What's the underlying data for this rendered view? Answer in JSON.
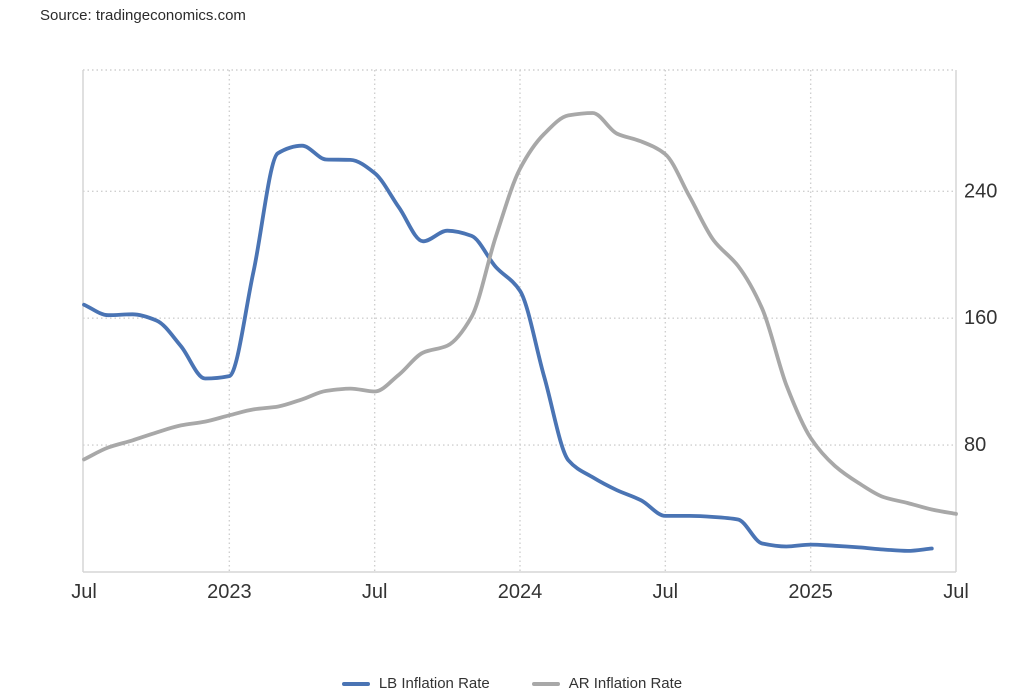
{
  "header": {
    "source_text": "Source: tradingeconomics.com"
  },
  "legend": {
    "position": "bottom",
    "items": [
      {
        "label": "LB Inflation Rate",
        "color": "#4a74b4"
      },
      {
        "label": "AR Inflation Rate",
        "color": "#a8a8a8"
      }
    ]
  },
  "colors": {
    "background": "#ffffff",
    "grid_dotted": "#cfcfcf",
    "frame": "#d5d5d5",
    "tick_text": "#333333",
    "lb_line": "#4a74b4",
    "ar_line": "#a8a8a8"
  },
  "chart_data": {
    "type": "line",
    "title": "",
    "xlabel": "",
    "ylabel": "",
    "grid": "dotted",
    "legend_position": "bottom",
    "y_ticks": [
      80,
      160,
      240
    ],
    "y_tick_side": "right",
    "y_range": [
      0,
      316.5
    ],
    "x_ticks": [
      {
        "label": "Jul",
        "month_index": 0,
        "grid": false
      },
      {
        "label": "2023",
        "month_index": 6,
        "grid": true
      },
      {
        "label": "Jul",
        "month_index": 12,
        "grid": true
      },
      {
        "label": "2024",
        "month_index": 18,
        "grid": true
      },
      {
        "label": "Jul",
        "month_index": 24,
        "grid": true
      },
      {
        "label": "2025",
        "month_index": 30,
        "grid": true
      },
      {
        "label": "Jul",
        "month_index": 36,
        "grid": false
      }
    ],
    "months": [
      "2022-07",
      "2022-08",
      "2022-09",
      "2022-10",
      "2022-11",
      "2022-12",
      "2023-01",
      "2023-02",
      "2023-03",
      "2023-04",
      "2023-05",
      "2023-06",
      "2023-07",
      "2023-08",
      "2023-09",
      "2023-10",
      "2023-11",
      "2023-12",
      "2024-01",
      "2024-02",
      "2024-03",
      "2024-04",
      "2024-05",
      "2024-06",
      "2024-07",
      "2024-08",
      "2024-09",
      "2024-10",
      "2024-11",
      "2024-12",
      "2025-01",
      "2025-02",
      "2025-03",
      "2025-04",
      "2025-05",
      "2025-06",
      "2025-07"
    ],
    "series": [
      {
        "name": "LB Inflation Rate",
        "color": "#4a74b4",
        "values": [
          168.5,
          161.9,
          162.5,
          158.5,
          142.4,
          122.0,
          123.5,
          189.7,
          264.0,
          268.8,
          260.1,
          259.8,
          251.5,
          229.9,
          208.5,
          215.2,
          211.9,
          192.3,
          177.3,
          123.1,
          70.4,
          59.7,
          51.6,
          45.2,
          35.4,
          35.4,
          34.7,
          33.1,
          18.0,
          16.1,
          17.3,
          16.5,
          15.5,
          14.2,
          13.3,
          14.8,
          null
        ]
      },
      {
        "name": "AR Inflation Rate",
        "color": "#a8a8a8",
        "values": [
          71.0,
          78.5,
          83.0,
          88.0,
          92.4,
          94.8,
          98.8,
          102.5,
          104.3,
          108.8,
          114.2,
          115.6,
          113.8,
          124.4,
          138.3,
          142.7,
          160.9,
          211.4,
          254.2,
          276.2,
          287.9,
          289.4,
          276.4,
          271.5,
          263.4,
          236.7,
          209.0,
          193.0,
          166.0,
          117.8,
          84.5,
          66.9,
          55.9,
          47.3,
          43.5,
          39.4,
          36.6
        ]
      }
    ]
  }
}
